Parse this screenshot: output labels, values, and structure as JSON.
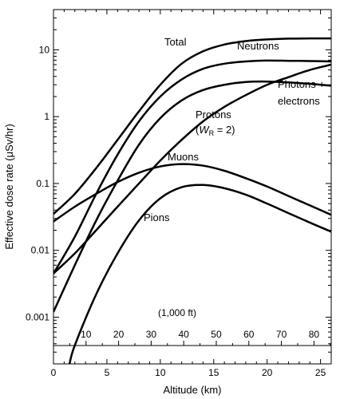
{
  "chart_data": {
    "type": "line",
    "title": "",
    "xlabel": "Altitude (km)",
    "ylabel": "Effective dose rate (μSv/hr)",
    "xlim": [
      0,
      26
    ],
    "ylim": [
      0.0002,
      40
    ],
    "y_scale": "log",
    "grid": false,
    "legend": "none (series labelled directly on curves)",
    "x_ticks": [
      0,
      5,
      10,
      15,
      20,
      25
    ],
    "y_ticks": [
      0.001,
      0.01,
      0.1,
      1,
      10
    ],
    "y_tick_labels": [
      "0.001",
      "0.01",
      "0.1",
      "1",
      "10"
    ],
    "secondary_x_axis": {
      "label": "(1,000 ft)",
      "ticks": [
        10,
        20,
        30,
        40,
        50,
        60,
        70,
        80
      ],
      "km_per_unit": 0.3048
    },
    "series": [
      {
        "name": "Total",
        "x": [
          0,
          2,
          4,
          6,
          8,
          10,
          12,
          14,
          16,
          18,
          20,
          22,
          24,
          26
        ],
        "y": [
          0.035,
          0.07,
          0.17,
          0.45,
          1.2,
          3.0,
          6.2,
          9.5,
          12,
          13.5,
          14.3,
          14.7,
          14.8,
          14.8
        ]
      },
      {
        "name": "Neutrons",
        "x": [
          0,
          2,
          4,
          6,
          8,
          10,
          12,
          14,
          16,
          18,
          20,
          22,
          24,
          26
        ],
        "y": [
          0.0045,
          0.016,
          0.07,
          0.27,
          0.85,
          2.0,
          3.6,
          5.2,
          6.2,
          6.7,
          6.9,
          6.85,
          6.8,
          6.7
        ]
      },
      {
        "name": "Photons + electrons",
        "x": [
          0,
          2,
          4,
          6,
          8,
          10,
          12,
          14,
          16,
          18,
          20,
          22,
          24,
          26
        ],
        "y": [
          0.0012,
          0.006,
          0.028,
          0.11,
          0.38,
          0.95,
          1.75,
          2.5,
          3.0,
          3.3,
          3.35,
          3.25,
          3.1,
          2.9
        ]
      },
      {
        "name": "Protons",
        "x": [
          0,
          2,
          4,
          6,
          8,
          10,
          12,
          14,
          16,
          18,
          20,
          22,
          24,
          26
        ],
        "y": [
          0.0045,
          0.009,
          0.02,
          0.045,
          0.1,
          0.22,
          0.45,
          0.85,
          1.4,
          2.1,
          3.0,
          3.9,
          5.0,
          6.0
        ]
      },
      {
        "name": "Muons",
        "x": [
          0,
          2,
          4,
          6,
          8,
          10,
          12,
          14,
          16,
          18,
          20,
          22,
          24,
          26
        ],
        "y": [
          0.027,
          0.045,
          0.07,
          0.105,
          0.145,
          0.18,
          0.195,
          0.185,
          0.155,
          0.12,
          0.09,
          0.065,
          0.047,
          0.034
        ]
      },
      {
        "name": "Pions",
        "x": [
          1.5,
          2,
          4,
          6,
          8,
          10,
          12,
          14,
          16,
          18,
          20,
          22,
          24,
          26
        ],
        "y": [
          0.0002,
          0.00038,
          0.0022,
          0.009,
          0.028,
          0.06,
          0.088,
          0.095,
          0.085,
          0.068,
          0.05,
          0.036,
          0.026,
          0.019
        ]
      }
    ],
    "annotations": {
      "total": "Total",
      "neutrons": "Neutrons",
      "photons_line1": "Photons +",
      "photons_line2": "electrons",
      "protons_line1": "Protons",
      "protons_w": "W",
      "protons_sub": "R",
      "protons_rest": " = 2)",
      "protons_open": "(",
      "muons": "Muons",
      "pions": "Pions"
    },
    "colors": {
      "lines": "#000000",
      "background": "#ffffff"
    }
  }
}
